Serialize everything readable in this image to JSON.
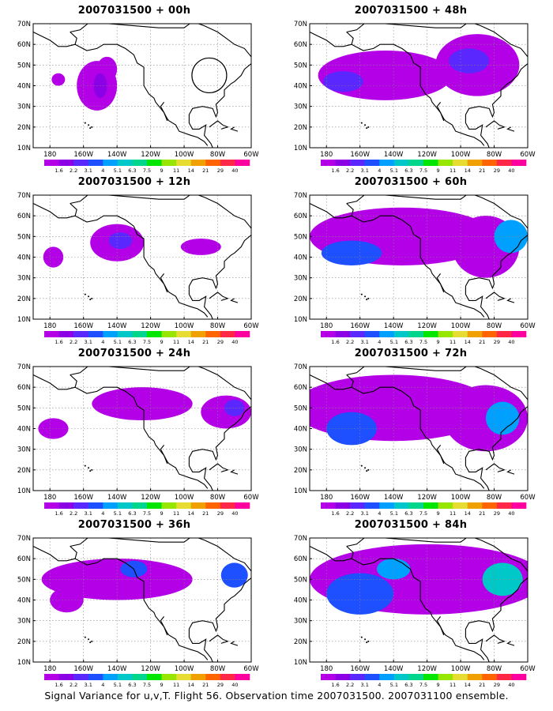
{
  "panels": [
    {
      "title": "2007031500 + 00h",
      "lead": "00h",
      "blobs": [
        {
          "lon": -152,
          "lat": 40,
          "rx": 12,
          "ry": 12,
          "c": 0
        },
        {
          "lon": -146,
          "lat": 48,
          "rx": 6,
          "ry": 6,
          "c": 0
        },
        {
          "lon": -175,
          "lat": 43,
          "rx": 4,
          "ry": 3,
          "c": 0
        },
        {
          "lon": -150,
          "lat": 40,
          "rx": 4,
          "ry": 6,
          "c": 1
        }
      ]
    },
    {
      "title": "2007031500 + 12h",
      "lead": "12h",
      "blobs": [
        {
          "lon": -140,
          "lat": 47,
          "rx": 16,
          "ry": 9,
          "c": 0
        },
        {
          "lon": -178,
          "lat": 40,
          "rx": 6,
          "ry": 5,
          "c": 0
        },
        {
          "lon": -90,
          "lat": 45,
          "rx": 12,
          "ry": 4,
          "c": 0
        },
        {
          "lon": -138,
          "lat": 48,
          "rx": 7,
          "ry": 4,
          "c": 2
        }
      ]
    },
    {
      "title": "2007031500 + 24h",
      "lead": "24h",
      "blobs": [
        {
          "lon": -125,
          "lat": 52,
          "rx": 30,
          "ry": 8,
          "c": 0
        },
        {
          "lon": -178,
          "lat": 40,
          "rx": 9,
          "ry": 5,
          "c": 0
        },
        {
          "lon": -75,
          "lat": 48,
          "rx": 15,
          "ry": 8,
          "c": 0
        },
        {
          "lon": -70,
          "lat": 50,
          "rx": 6,
          "ry": 4,
          "c": 2
        }
      ]
    },
    {
      "title": "2007031500 + 36h",
      "lead": "36h",
      "blobs": [
        {
          "lon": -140,
          "lat": 50,
          "rx": 45,
          "ry": 10,
          "c": 0
        },
        {
          "lon": -170,
          "lat": 40,
          "rx": 10,
          "ry": 6,
          "c": 0
        },
        {
          "lon": -130,
          "lat": 55,
          "rx": 8,
          "ry": 4,
          "c": 3
        },
        {
          "lon": -70,
          "lat": 52,
          "rx": 8,
          "ry": 6,
          "c": 3
        }
      ]
    },
    {
      "title": "2007031500 + 48h",
      "lead": "48h",
      "blobs": [
        {
          "lon": -145,
          "lat": 45,
          "rx": 40,
          "ry": 12,
          "c": 0
        },
        {
          "lon": -90,
          "lat": 50,
          "rx": 25,
          "ry": 15,
          "c": 0
        },
        {
          "lon": -95,
          "lat": 52,
          "rx": 12,
          "ry": 6,
          "c": 2
        },
        {
          "lon": -170,
          "lat": 42,
          "rx": 12,
          "ry": 5,
          "c": 2
        }
      ]
    },
    {
      "title": "2007031500 + 60h",
      "lead": "60h",
      "blobs": [
        {
          "lon": -135,
          "lat": 50,
          "rx": 55,
          "ry": 14,
          "c": 0
        },
        {
          "lon": -85,
          "lat": 45,
          "rx": 20,
          "ry": 15,
          "c": 0
        },
        {
          "lon": -165,
          "lat": 42,
          "rx": 18,
          "ry": 6,
          "c": 3
        },
        {
          "lon": -70,
          "lat": 50,
          "rx": 10,
          "ry": 8,
          "c": 4
        }
      ]
    },
    {
      "title": "2007031500 + 72h",
      "lead": "72h",
      "blobs": [
        {
          "lon": -140,
          "lat": 50,
          "rx": 60,
          "ry": 16,
          "c": 0
        },
        {
          "lon": -85,
          "lat": 45,
          "rx": 25,
          "ry": 16,
          "c": 0
        },
        {
          "lon": -165,
          "lat": 40,
          "rx": 15,
          "ry": 8,
          "c": 3
        },
        {
          "lon": -75,
          "lat": 45,
          "rx": 10,
          "ry": 8,
          "c": 4
        }
      ]
    },
    {
      "title": "2007031500 + 84h",
      "lead": "84h",
      "blobs": [
        {
          "lon": -120,
          "lat": 50,
          "rx": 70,
          "ry": 17,
          "c": 0
        },
        {
          "lon": -160,
          "lat": 43,
          "rx": 20,
          "ry": 10,
          "c": 3
        },
        {
          "lon": -140,
          "lat": 55,
          "rx": 10,
          "ry": 5,
          "c": 4
        },
        {
          "lon": -75,
          "lat": 50,
          "rx": 12,
          "ry": 8,
          "c": 5
        }
      ]
    }
  ],
  "axes": {
    "lon_labels": [
      "180",
      "160W",
      "140W",
      "120W",
      "100W",
      "80W",
      "60W"
    ],
    "lat_labels": [
      "10N",
      "20N",
      "30N",
      "40N",
      "50N",
      "60N",
      "70N"
    ],
    "lon_range": [
      -190,
      -60
    ],
    "lat_range": [
      10,
      70
    ]
  },
  "legend": {
    "labels": [
      "1.6",
      "2.2",
      "3.1",
      "4",
      "5.1",
      "6.3",
      "7.5",
      "9",
      "11",
      "14",
      "21",
      "29",
      "40"
    ],
    "colors": [
      "#b400e6",
      "#8c00e6",
      "#5a28ff",
      "#1e50ff",
      "#00a0ff",
      "#00c8c8",
      "#00d78c",
      "#00e600",
      "#96e600",
      "#e6dc32",
      "#f0a000",
      "#ff6400",
      "#ff2846",
      "#ff00a0"
    ]
  },
  "caption": "Signal Variance for u,v,T. Flight 56. Observation time 2007031500. 2007031100 ensemble."
}
